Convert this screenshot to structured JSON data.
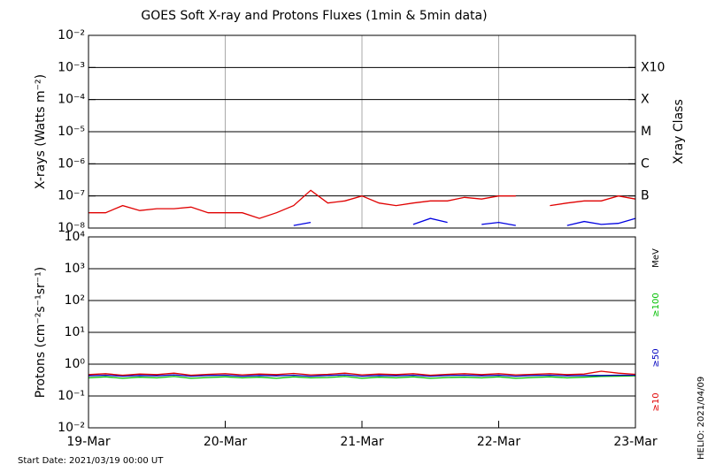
{
  "title": "GOES Soft X-ray and Protons Fluxes   (1min & 5min data)",
  "start_date": "Start Date: 2021/03/19 00:00 UT",
  "helio_date": "HELIO: 2021/04/09",
  "x_axis": {
    "xlim": [
      0,
      4
    ],
    "xticks": [
      {
        "value": 0,
        "label": "19-Mar"
      },
      {
        "value": 1,
        "label": "20-Mar"
      },
      {
        "value": 2,
        "label": "21-Mar"
      },
      {
        "value": 3,
        "label": "22-Mar"
      },
      {
        "value": 4,
        "label": "23-Mar"
      }
    ]
  },
  "chart_data": [
    {
      "type": "line",
      "log_y": true,
      "xgrid": true,
      "ylabel": "X-rays (Watts m⁻²)",
      "ylim": [
        1e-08,
        0.01
      ],
      "yticks": [
        {
          "value": 1e-08,
          "label": "10⁻⁸"
        },
        {
          "value": 1e-07,
          "label": "10⁻⁷"
        },
        {
          "value": 1e-06,
          "label": "10⁻⁶"
        },
        {
          "value": 1e-05,
          "label": "10⁻⁵"
        },
        {
          "value": 0.0001,
          "label": "10⁻⁴"
        },
        {
          "value": 0.001,
          "label": "10⁻³"
        },
        {
          "value": 0.01,
          "label": "10⁻²"
        }
      ],
      "right_label": "Xray Class",
      "class_labels": [
        {
          "value": 0.001,
          "label": "X10"
        },
        {
          "value": 0.0001,
          "label": "X"
        },
        {
          "value": 1e-05,
          "label": "M"
        },
        {
          "value": 1e-06,
          "label": "C"
        },
        {
          "value": 1e-07,
          "label": "B"
        }
      ],
      "x": [
        0,
        0.125,
        0.25,
        0.375,
        0.5,
        0.625,
        0.75,
        0.875,
        1,
        1.125,
        1.25,
        1.375,
        1.5,
        1.625,
        1.75,
        1.875,
        2,
        2.125,
        2.25,
        2.375,
        2.5,
        2.625,
        2.75,
        2.875,
        3,
        3.125,
        3.25,
        3.375,
        3.5,
        3.625,
        3.75,
        3.875,
        4
      ],
      "series": [
        {
          "color": "#e00000",
          "values": [
            3e-08,
            3e-08,
            5e-08,
            3.5e-08,
            4e-08,
            4e-08,
            4.5e-08,
            3e-08,
            3e-08,
            3e-08,
            2e-08,
            3e-08,
            5e-08,
            1.5e-07,
            6e-08,
            7e-08,
            1e-07,
            6e-08,
            5e-08,
            6e-08,
            7e-08,
            7e-08,
            9e-08,
            8e-08,
            1e-07,
            1e-07,
            null,
            5e-08,
            6e-08,
            7e-08,
            7e-08,
            1e-07,
            8e-08
          ]
        },
        {
          "color": "#0000e0",
          "values": [
            null,
            null,
            null,
            null,
            null,
            null,
            null,
            null,
            null,
            null,
            null,
            null,
            1.2e-08,
            1.5e-08,
            null,
            null,
            null,
            null,
            null,
            1.3e-08,
            2e-08,
            1.5e-08,
            null,
            1.3e-08,
            1.5e-08,
            1.2e-08,
            null,
            null,
            1.2e-08,
            1.6e-08,
            1.3e-08,
            1.4e-08,
            2e-08
          ]
        }
      ]
    },
    {
      "type": "line",
      "log_y": true,
      "ylabel": "Protons (cm⁻²s⁻¹sr⁻¹)",
      "unit_label": "MeV",
      "ylim": [
        0.01,
        10000
      ],
      "yticks": [
        {
          "value": 0.01,
          "label": "10⁻²"
        },
        {
          "value": 0.1,
          "label": "10⁻¹"
        },
        {
          "value": 1,
          "label": "10⁰"
        },
        {
          "value": 10,
          "label": "10¹"
        },
        {
          "value": 100,
          "label": "10²"
        },
        {
          "value": 1000,
          "label": "10³"
        },
        {
          "value": 10000,
          "label": "10⁴"
        }
      ],
      "threshold": 10,
      "x": [
        0,
        0.125,
        0.25,
        0.375,
        0.5,
        0.625,
        0.75,
        0.875,
        1,
        1.125,
        1.25,
        1.375,
        1.5,
        1.625,
        1.75,
        1.875,
        2,
        2.125,
        2.25,
        2.375,
        2.5,
        2.625,
        2.75,
        2.875,
        3,
        3.125,
        3.25,
        3.375,
        3.5,
        3.625,
        3.75,
        3.875,
        4
      ],
      "series": [
        {
          "name": "≥100",
          "color": "#00c000",
          "values": [
            0.37,
            0.4,
            0.36,
            0.39,
            0.37,
            0.41,
            0.36,
            0.38,
            0.4,
            0.37,
            0.39,
            0.36,
            0.4,
            0.37,
            0.38,
            0.41,
            0.36,
            0.39,
            0.37,
            0.4,
            0.36,
            0.38,
            0.39,
            0.37,
            0.4,
            0.36,
            0.38,
            0.4,
            0.37,
            0.39,
            0.41,
            0.42,
            0.43
          ]
        },
        {
          "name": "≥50",
          "color": "#0000c0",
          "values": [
            0.43,
            0.45,
            0.42,
            0.44,
            0.43,
            0.46,
            0.42,
            0.44,
            0.45,
            0.42,
            0.44,
            0.43,
            0.45,
            0.42,
            0.44,
            0.46,
            0.42,
            0.44,
            0.43,
            0.45,
            0.42,
            0.44,
            0.45,
            0.43,
            0.45,
            0.42,
            0.44,
            0.45,
            0.43,
            0.44,
            0.44,
            0.45,
            0.45
          ]
        },
        {
          "name": "≥10",
          "color": "#e00000",
          "values": [
            0.47,
            0.5,
            0.45,
            0.49,
            0.47,
            0.52,
            0.45,
            0.48,
            0.5,
            0.46,
            0.49,
            0.47,
            0.51,
            0.46,
            0.48,
            0.52,
            0.46,
            0.49,
            0.47,
            0.5,
            0.45,
            0.48,
            0.5,
            0.47,
            0.5,
            0.46,
            0.48,
            0.5,
            0.47,
            0.49,
            0.6,
            0.52,
            0.48
          ]
        }
      ]
    }
  ]
}
